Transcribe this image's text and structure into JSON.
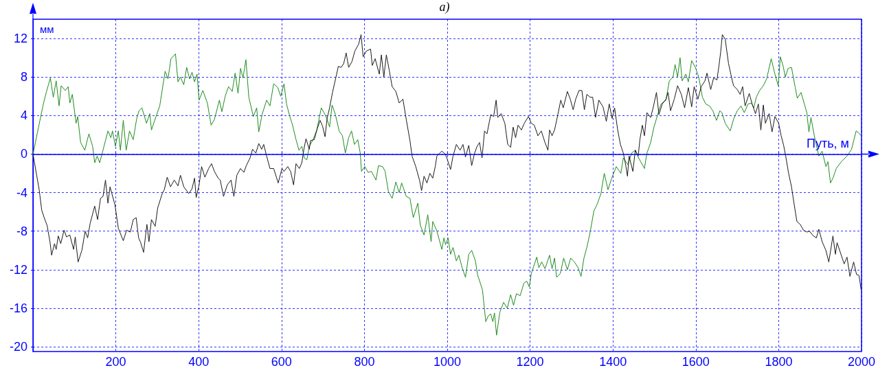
{
  "chart_data": {
    "type": "line",
    "title": "а)",
    "xlabel": "Путь, м",
    "ylabel": "мм",
    "xlim": [
      0,
      2000
    ],
    "xticks": [
      200,
      400,
      600,
      800,
      1000,
      1200,
      1400,
      1600,
      1800,
      2000
    ],
    "ylim": [
      -20.5,
      14
    ],
    "yticks": [
      -20,
      -16,
      -12,
      -8,
      -4,
      0,
      4,
      8,
      12
    ],
    "grid": true,
    "marker": "none",
    "ref_lines": [
      {
        "axis": "y",
        "value": 0,
        "color": "#0000ff"
      }
    ],
    "series": [
      {
        "color": "#1e8c1e",
        "x": [
          0,
          24,
          32,
          42,
          49,
          56,
          63,
          68,
          78,
          85,
          89,
          95,
          104,
          108,
          115,
          125,
          135,
          144,
          149,
          155,
          161,
          169,
          181,
          188,
          192,
          199,
          206,
          211,
          218,
          225,
          233,
          242,
          250,
          256,
          263,
          274,
          282,
          286,
          297,
          306,
          319,
          326,
          333,
          344,
          350,
          356,
          364,
          371,
          378,
          384,
          390,
          396,
          401,
          410,
          421,
          430,
          438,
          450,
          456,
          464,
          472,
          481,
          488,
          495,
          501,
          507,
          514,
          521,
          532,
          540,
          545,
          553,
          564,
          572,
          581,
          591,
          598,
          606,
          612,
          620,
          626,
          635,
          642,
          649,
          655,
          661,
          667,
          676,
          685,
          696,
          705,
          710,
          716,
          722,
          730,
          739,
          747,
          754,
          762,
          769,
          776,
          784,
          790,
          793,
          801,
          809,
          817,
          828,
          834,
          844,
          850,
          858,
          867,
          876,
          884,
          890,
          901,
          910,
          918,
          929,
          935,
          944,
          953,
          961,
          965,
          975,
          987,
          992,
          996,
          1002,
          1008,
          1014,
          1022,
          1028,
          1036,
          1044,
          1052,
          1059,
          1068,
          1073,
          1085,
          1093,
          1099,
          1105,
          1110,
          1114,
          1119,
          1127,
          1136,
          1145,
          1153,
          1160,
          1167,
          1176,
          1185,
          1192,
          1198,
          1203,
          1216,
          1221,
          1228,
          1236,
          1247,
          1253,
          1259,
          1264,
          1273,
          1281,
          1290,
          1298,
          1307,
          1316,
          1323,
          1330,
          1337,
          1345,
          1354,
          1362,
          1371,
          1379,
          1388,
          1397,
          1408,
          1419,
          1425,
          1436,
          1445,
          1454,
          1462,
          1476,
          1482,
          1491,
          1499,
          1508,
          1516,
          1528,
          1536,
          1545,
          1550,
          1556,
          1562,
          1567,
          1576,
          1582,
          1590,
          1599,
          1607,
          1616,
          1624,
          1633,
          1641,
          1650,
          1658,
          1663,
          1671,
          1683,
          1691,
          1700,
          1709,
          1717,
          1726,
          1734,
          1740,
          1746,
          1754,
          1763,
          1771,
          1782,
          1791,
          1799,
          1804,
          1811,
          1816,
          1823,
          1831,
          1840,
          1845,
          1854,
          1862,
          1868,
          1873,
          1878,
          1886,
          1897,
          1905,
          1914,
          1919,
          1925,
          1931,
          1939,
          1951,
          1965,
          1976,
          1987,
          1993,
          1999
        ],
        "values": [
          0,
          5.0,
          6.4,
          7.9,
          5.9,
          7.6,
          5.0,
          7.1,
          6.6,
          7.0,
          5.3,
          6.2,
          3.2,
          3.9,
          1.2,
          0.4,
          2.1,
          0.8,
          -0.9,
          -0.2,
          -0.9,
          0.4,
          2.4,
          1.7,
          2.4,
          0.8,
          2.4,
          0.4,
          3.5,
          0.4,
          2.4,
          1.5,
          3.6,
          4.5,
          4.8,
          3.2,
          4.2,
          2.5,
          3.9,
          5.0,
          8.6,
          7.8,
          9.9,
          10.4,
          7.5,
          8.0,
          7.2,
          9.0,
          7.8,
          8.5,
          7.5,
          8.3,
          5.6,
          6.6,
          5.3,
          3.0,
          3.6,
          5.6,
          4.4,
          6.0,
          7.0,
          6.5,
          8.4,
          6.3,
          8.9,
          7.9,
          9.8,
          5.9,
          3.9,
          4.8,
          2.3,
          4.1,
          5.6,
          5.0,
          7.3,
          6.9,
          6.0,
          7.3,
          5.2,
          3.9,
          3.1,
          1.5,
          0.4,
          0.8,
          -0.4,
          -0.6,
          0.8,
          1.5,
          2.5,
          4.8,
          4.1,
          3.6,
          2.8,
          5.1,
          4.1,
          2.4,
          1.9,
          0.1,
          1.7,
          2.4,
          1.0,
          1.5,
          0.1,
          -1.8,
          -1.3,
          -1.9,
          -1.8,
          -2.7,
          -1.2,
          -1.3,
          -1.8,
          -3.9,
          -4.6,
          -2.9,
          -4.0,
          -3.0,
          -4.4,
          -4.6,
          -6.6,
          -5.1,
          -7.4,
          -8.4,
          -6.3,
          -9.1,
          -7.0,
          -8.0,
          -9.9,
          -8.7,
          -9.4,
          -8.7,
          -10.4,
          -9.7,
          -11.1,
          -10.5,
          -11.8,
          -12.8,
          -10.4,
          -10.0,
          -11.1,
          -12.5,
          -14.1,
          -17.4,
          -16.8,
          -16.6,
          -17.4,
          -16.5,
          -18.8,
          -16.4,
          -15.4,
          -16.0,
          -14.6,
          -15.7,
          -14.5,
          -14.7,
          -13.4,
          -13.2,
          -13.8,
          -12.4,
          -10.7,
          -11.8,
          -11.2,
          -11.9,
          -10.5,
          -11.9,
          -10.8,
          -12.8,
          -12.4,
          -10.8,
          -12.0,
          -10.8,
          -11.2,
          -11.8,
          -12.7,
          -10.8,
          -9.7,
          -8.1,
          -5.9,
          -5.2,
          -4.1,
          -2.0,
          -3.7,
          -2.5,
          -1.3,
          -2.0,
          -0.4,
          -1.1,
          0.1,
          0.4,
          -0.4,
          -1.5,
          0.1,
          1.2,
          2.8,
          4.1,
          5.2,
          5.6,
          7.6,
          8.0,
          9.3,
          8.0,
          10.0,
          7.6,
          8.3,
          7.5,
          9.7,
          9.0,
          8.0,
          5.9,
          5.2,
          5.0,
          4.5,
          3.5,
          4.5,
          4.3,
          3.2,
          2.4,
          3.6,
          4.5,
          5.0,
          4.3,
          5.2,
          5.3,
          4.8,
          5.9,
          6.6,
          7.1,
          7.8,
          9.9,
          8.3,
          7.1,
          10.1,
          9.1,
          8.0,
          8.9,
          9.0,
          6.9,
          5.8,
          6.4,
          5.2,
          4.3,
          2.3,
          3.8,
          1.9,
          -0.2,
          0.3,
          -1.3,
          -0.8,
          -3.0,
          -2.5,
          -1.5,
          -0.8,
          -0.2,
          0.5,
          2.4,
          2.2,
          1.9
        ]
      },
      {
        "color": "#1a1a1a",
        "x": [
          0,
          15,
          21,
          27,
          34,
          41,
          45,
          52,
          56,
          61,
          67,
          75,
          81,
          89,
          98,
          102,
          109,
          118,
          126,
          132,
          138,
          149,
          156,
          163,
          169,
          175,
          181,
          186,
          198,
          206,
          218,
          226,
          235,
          242,
          249,
          255,
          260,
          267,
          275,
          280,
          286,
          295,
          301,
          312,
          317,
          324,
          332,
          341,
          350,
          356,
          364,
          376,
          384,
          390,
          394,
          401,
          407,
          415,
          424,
          431,
          438,
          447,
          452,
          460,
          469,
          478,
          485,
          492,
          501,
          509,
          515,
          524,
          530,
          538,
          545,
          552,
          557,
          564,
          572,
          581,
          592,
          601,
          606,
          615,
          622,
          629,
          635,
          643,
          649,
          654,
          659,
          667,
          670,
          679,
          686,
          693,
          699,
          705,
          710,
          716,
          723,
          733,
          737,
          744,
          750,
          756,
          762,
          770,
          777,
          786,
          792,
          797,
          805,
          815,
          819,
          826,
          836,
          841,
          847,
          853,
          860,
          867,
          876,
          884,
          893,
          901,
          910,
          915,
          924,
          933,
          938,
          944,
          951,
          958,
          965,
          971,
          975,
          987,
          995,
          999,
          1008,
          1014,
          1022,
          1031,
          1038,
          1044,
          1052,
          1059,
          1066,
          1072,
          1078,
          1084,
          1090,
          1096,
          1105,
          1112,
          1118,
          1122,
          1130,
          1139,
          1146,
          1153,
          1159,
          1165,
          1171,
          1179,
          1186,
          1196,
          1203,
          1210,
          1219,
          1227,
          1236,
          1243,
          1247,
          1253,
          1259,
          1267,
          1274,
          1280,
          1290,
          1297,
          1304,
          1310,
          1318,
          1325,
          1331,
          1337,
          1345,
          1351,
          1358,
          1366,
          1376,
          1384,
          1391,
          1398,
          1404,
          1411,
          1418,
          1425,
          1431,
          1435,
          1439,
          1448,
          1454,
          1461,
          1465,
          1471,
          1476,
          1482,
          1491,
          1497,
          1505,
          1511,
          1519,
          1528,
          1533,
          1539,
          1548,
          1556,
          1565,
          1573,
          1582,
          1590,
          1596,
          1605,
          1613,
          1622,
          1627,
          1636,
          1643,
          1651,
          1656,
          1660,
          1664,
          1671,
          1679,
          1686,
          1691,
          1700,
          1707,
          1713,
          1719,
          1729,
          1736,
          1744,
          1751,
          1757,
          1763,
          1768,
          1777,
          1784,
          1791,
          1800,
          1806,
          1812,
          1817,
          1824,
          1831,
          1837,
          1844,
          1852,
          1860,
          1868,
          1874,
          1884,
          1891,
          1897,
          1905,
          1914,
          1921,
          1931,
          1937,
          1941,
          1948,
          1958,
          1965,
          1972,
          1981,
          1988,
          1994,
          1999
        ],
        "values": [
          0,
          -3.7,
          -5.8,
          -6.6,
          -7.4,
          -9.1,
          -10.5,
          -9.3,
          -9.9,
          -8.5,
          -9.3,
          -7.9,
          -8.6,
          -8.4,
          -9.9,
          -8.6,
          -11.2,
          -10.0,
          -8.0,
          -8.7,
          -7.2,
          -5.4,
          -6.8,
          -4.6,
          -4.4,
          -2.7,
          -5.1,
          -3.4,
          -5.3,
          -7.7,
          -9.0,
          -7.9,
          -8.1,
          -6.8,
          -6.6,
          -8.7,
          -9.2,
          -10.2,
          -7.3,
          -9.1,
          -6.8,
          -7.5,
          -5.6,
          -4.1,
          -3.7,
          -2.4,
          -3.4,
          -2.7,
          -3.3,
          -2.2,
          -3.4,
          -4.1,
          -3.6,
          -2.5,
          -4.5,
          -3.2,
          -1.3,
          -2.4,
          -1.5,
          -1.0,
          -1.8,
          -2.5,
          -2.7,
          -4.4,
          -3.2,
          -2.7,
          -4.4,
          -2.2,
          -1.5,
          -1.9,
          -1.2,
          -0.4,
          0.5,
          0.1,
          1.1,
          0.5,
          1.0,
          -0.2,
          -1.5,
          -1.5,
          -3.0,
          -1.5,
          -1.8,
          -1.3,
          -1.8,
          -3.2,
          -1.0,
          -1.5,
          -0.9,
          0.5,
          1.6,
          0.5,
          1.4,
          1.5,
          2.6,
          3.5,
          2.9,
          1.8,
          3.7,
          4.8,
          6.4,
          8.3,
          9.1,
          9.0,
          9.4,
          10.5,
          9.0,
          9.6,
          10.7,
          11.4,
          12.4,
          10.1,
          10.7,
          10.9,
          9.2,
          9.9,
          8.3,
          10.3,
          8.0,
          10.3,
          8.7,
          7.0,
          6.5,
          5.3,
          5.7,
          3.6,
          1.4,
          -0.2,
          -1.3,
          -2.7,
          -3.8,
          -2.3,
          -3.0,
          -2.0,
          -2.5,
          -1.3,
          -0.2,
          0.3,
          0.0,
          -0.4,
          -1.6,
          -0.2,
          1.0,
          0.4,
          1.0,
          -0.3,
          0.9,
          -1.2,
          0.1,
          0.8,
          1.2,
          -0.4,
          2.4,
          2.1,
          4.1,
          3.9,
          5.6,
          3.8,
          4.2,
          3.2,
          1.0,
          0.7,
          2.8,
          1.7,
          3.0,
          2.5,
          3.2,
          3.9,
          3.2,
          3.0,
          1.9,
          2.4,
          1.2,
          0.4,
          2.5,
          1.9,
          2.5,
          4.1,
          5.6,
          4.8,
          6.5,
          5.7,
          4.6,
          5.7,
          6.6,
          6.6,
          4.6,
          6.2,
          5.9,
          5.9,
          3.8,
          5.6,
          4.9,
          3.4,
          5.2,
          3.7,
          4.8,
          2.6,
          1.0,
          0.1,
          -1.2,
          -2.3,
          -0.2,
          -1.8,
          0.4,
          -0.2,
          1.5,
          3.0,
          1.9,
          4.3,
          3.8,
          4.8,
          6.4,
          4.1,
          5.2,
          5.7,
          6.4,
          4.5,
          5.7,
          7.1,
          6.2,
          4.8,
          6.9,
          4.9,
          7.0,
          5.7,
          7.0,
          7.6,
          8.4,
          6.7,
          7.9,
          7.7,
          9.2,
          10.6,
          12.4,
          11.9,
          9.4,
          8.0,
          7.1,
          6.7,
          6.2,
          7.0,
          5.0,
          6.3,
          5.2,
          4.2,
          5.2,
          2.5,
          5.1,
          3.2,
          4.2,
          2.3,
          3.9,
          3.2,
          1.9,
          0.9,
          -0.2,
          -2.0,
          -3.4,
          -5.1,
          -7.0,
          -7.3,
          -7.9,
          -8.1,
          -8.0,
          -8.5,
          -8.7,
          -7.8,
          -9.1,
          -10.0,
          -11.2,
          -8.5,
          -10.4,
          -9.2,
          -10.1,
          -11.4,
          -10.7,
          -12.7,
          -11.2,
          -12.5,
          -12.6,
          -14.1
        ]
      }
    ]
  }
}
